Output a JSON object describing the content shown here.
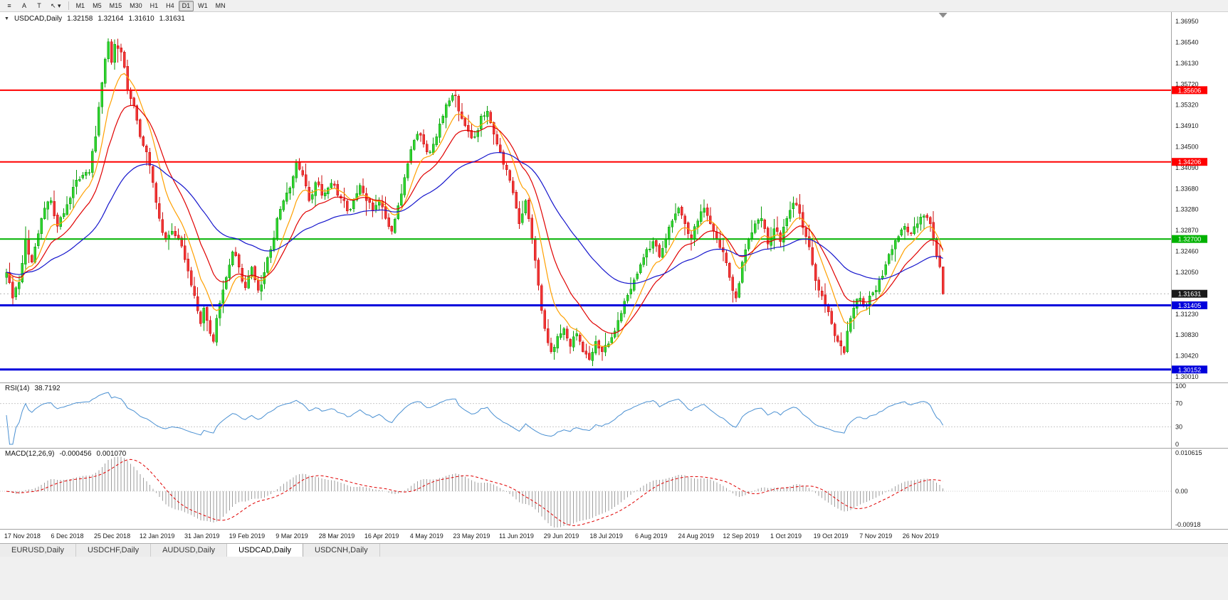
{
  "toolbar": {
    "tool_buttons": [
      {
        "name": "tile-windows-icon",
        "glyph": "≡"
      },
      {
        "name": "annotate-text-icon",
        "glyph": "A"
      },
      {
        "name": "text-label-icon",
        "glyph": "T"
      },
      {
        "name": "crosshair-cursor-icon",
        "glyph": "↖",
        "dropdown": "▾"
      }
    ],
    "timeframes": [
      "M1",
      "M5",
      "M15",
      "M30",
      "H1",
      "H4",
      "D1",
      "W1",
      "MN"
    ],
    "active_timeframe": "D1"
  },
  "chart_header": {
    "collapse_glyph": "▼",
    "symbol_period": "USDCAD,Daily",
    "open": "1.32158",
    "high": "1.32164",
    "low": "1.31610",
    "close": "1.31631"
  },
  "rsi_panel": {
    "label": "RSI(14)",
    "value": "38.7192"
  },
  "macd_panel": {
    "label": "MACD(12,26,9)",
    "main_value": "-0.000456",
    "signal_value": "0.001070"
  },
  "tabs": [
    {
      "label": "EURUSD,Daily",
      "active": false
    },
    {
      "label": "USDCHF,Daily",
      "active": false
    },
    {
      "label": "AUDUSD,Daily",
      "active": false
    },
    {
      "label": "USDCAD,Daily",
      "active": true
    },
    {
      "label": "USDCNH,Daily",
      "active": false
    }
  ],
  "chart_data": {
    "type": "candlestick",
    "symbol": "USDCAD",
    "period": "Daily",
    "bars": 295,
    "price_axis_ticks": [
      "1.36950",
      "1.36540",
      "1.36130",
      "1.35720",
      "1.35320",
      "1.34910",
      "1.34500",
      "1.34090",
      "1.33680",
      "1.33280",
      "1.32870",
      "1.32460",
      "1.32050",
      "1.31230",
      "1.30830",
      "1.30420",
      "1.30010"
    ],
    "date_labels": [
      "17 Nov 2018",
      "6 Dec 2018",
      "25 Dec 2018",
      "12 Jan 2019",
      "31 Jan 2019",
      "19 Feb 2019",
      "9 Mar 2019",
      "28 Mar 2019",
      "16 Apr 2019",
      "4 May 2019",
      "23 May 2019",
      "11 Jun 2019",
      "29 Jun 2019",
      "18 Jul 2019",
      "6 Aug 2019",
      "24 Aug 2019",
      "12 Sep 2019",
      "1 Oct 2019",
      "19 Oct 2019",
      "7 Nov 2019",
      "26 Nov 2019"
    ],
    "horizontal_lines": [
      {
        "price": 1.35606,
        "label": "1.35606",
        "color": "#ff0000",
        "width": 2
      },
      {
        "price": 1.34206,
        "label": "1.34206",
        "color": "#ff0000",
        "width": 2
      },
      {
        "price": 1.327,
        "label": "1.32700",
        "color": "#00b200",
        "width": 2
      },
      {
        "price": 1.31405,
        "label": "1.31405",
        "color": "#0000dc",
        "width": 3
      },
      {
        "price": 1.30152,
        "label": "1.30152",
        "color": "#0000dc",
        "width": 3
      }
    ],
    "current_price": {
      "value": 1.31631,
      "label": "1.31631",
      "badge_color": "#1a1a1a"
    },
    "last_candle": {
      "open": 1.32158,
      "high": 1.32164,
      "low": 1.3161,
      "close": 1.31631
    },
    "spike_bar": {
      "index": 141,
      "high": 1.356
    },
    "candle_colors": {
      "up_fill": "#2fd32f",
      "up_stroke": "#089b08",
      "down_fill": "#f03535",
      "down_stroke": "#cc0f0f"
    },
    "moving_averages": [
      {
        "period": 9,
        "color": "#ffa000"
      },
      {
        "period": 18,
        "color": "#e00000"
      },
      {
        "period": 50,
        "color": "#1414cc"
      }
    ],
    "rsi": {
      "period": 14,
      "color": "#4a90d2",
      "levels": [
        70,
        30
      ],
      "axis_labels": [
        "100",
        "70",
        "30",
        "0"
      ],
      "range": [
        0,
        100
      ]
    },
    "macd": {
      "fast": 12,
      "slow": 26,
      "signal": 9,
      "histogram_color": "#9e9e9e",
      "signal_color": "#e00000",
      "axis_labels": [
        "0.010615",
        "0.00",
        "-0.00918"
      ],
      "range": [
        0.0112,
        -0.01
      ]
    },
    "anchors": [
      [
        0,
        1.3205
      ],
      [
        2,
        1.3155
      ],
      [
        4,
        1.3185
      ],
      [
        6,
        1.327
      ],
      [
        8,
        1.3225
      ],
      [
        10,
        1.328
      ],
      [
        12,
        1.333
      ],
      [
        14,
        1.3345
      ],
      [
        16,
        1.3295
      ],
      [
        18,
        1.332
      ],
      [
        20,
        1.335
      ],
      [
        22,
        1.3385
      ],
      [
        24,
        1.3395
      ],
      [
        26,
        1.34
      ],
      [
        28,
        1.347
      ],
      [
        30,
        1.3575
      ],
      [
        32,
        1.3655
      ],
      [
        33,
        1.3615
      ],
      [
        34,
        1.365
      ],
      [
        36,
        1.3635
      ],
      [
        38,
        1.356
      ],
      [
        40,
        1.353
      ],
      [
        42,
        1.347
      ],
      [
        44,
        1.344
      ],
      [
        46,
        1.338
      ],
      [
        48,
        1.331
      ],
      [
        50,
        1.327
      ],
      [
        52,
        1.3285
      ],
      [
        54,
        1.327
      ],
      [
        56,
        1.323
      ],
      [
        58,
        1.318
      ],
      [
        60,
        1.313
      ],
      [
        61,
        1.3105
      ],
      [
        62,
        1.3135
      ],
      [
        64,
        1.3085
      ],
      [
        65,
        1.307
      ],
      [
        67,
        1.3145
      ],
      [
        69,
        1.3195
      ],
      [
        71,
        1.3245
      ],
      [
        73,
        1.3215
      ],
      [
        75,
        1.3175
      ],
      [
        77,
        1.3215
      ],
      [
        79,
        1.317
      ],
      [
        81,
        1.3205
      ],
      [
        83,
        1.325
      ],
      [
        85,
        1.331
      ],
      [
        87,
        1.3345
      ],
      [
        89,
        1.337
      ],
      [
        91,
        1.342
      ],
      [
        93,
        1.3395
      ],
      [
        95,
        1.3345
      ],
      [
        97,
        1.338
      ],
      [
        99,
        1.3355
      ],
      [
        101,
        1.337
      ],
      [
        103,
        1.3375
      ],
      [
        105,
        1.335
      ],
      [
        107,
        1.3325
      ],
      [
        109,
        1.3345
      ],
      [
        111,
        1.3375
      ],
      [
        113,
        1.3345
      ],
      [
        115,
        1.3325
      ],
      [
        117,
        1.3345
      ],
      [
        119,
        1.331
      ],
      [
        121,
        1.3285
      ],
      [
        123,
        1.3335
      ],
      [
        125,
        1.339
      ],
      [
        127,
        1.3445
      ],
      [
        129,
        1.3475
      ],
      [
        131,
        1.3455
      ],
      [
        133,
        1.344
      ],
      [
        135,
        1.347
      ],
      [
        137,
        1.351
      ],
      [
        139,
        1.354
      ],
      [
        141,
        1.355
      ],
      [
        143,
        1.3505
      ],
      [
        145,
        1.348
      ],
      [
        147,
        1.347
      ],
      [
        149,
        1.351
      ],
      [
        151,
        1.352
      ],
      [
        153,
        1.3475
      ],
      [
        155,
        1.344
      ],
      [
        157,
        1.3405
      ],
      [
        159,
        1.336
      ],
      [
        161,
        1.33
      ],
      [
        163,
        1.3345
      ],
      [
        165,
        1.327
      ],
      [
        167,
        1.318
      ],
      [
        169,
        1.3095
      ],
      [
        171,
        1.305
      ],
      [
        173,
        1.308
      ],
      [
        175,
        1.3095
      ],
      [
        177,
        1.306
      ],
      [
        179,
        1.3085
      ],
      [
        181,
        1.305
      ],
      [
        183,
        1.3035
      ],
      [
        185,
        1.307
      ],
      [
        187,
        1.305
      ],
      [
        189,
        1.3065
      ],
      [
        191,
        1.309
      ],
      [
        193,
        1.3125
      ],
      [
        195,
        1.316
      ],
      [
        197,
        1.319
      ],
      [
        199,
        1.322
      ],
      [
        201,
        1.325
      ],
      [
        203,
        1.3265
      ],
      [
        205,
        1.3235
      ],
      [
        207,
        1.327
      ],
      [
        209,
        1.3305
      ],
      [
        211,
        1.333
      ],
      [
        213,
        1.33
      ],
      [
        215,
        1.327
      ],
      [
        217,
        1.3305
      ],
      [
        219,
        1.333
      ],
      [
        221,
        1.33
      ],
      [
        223,
        1.327
      ],
      [
        225,
        1.3245
      ],
      [
        227,
        1.3195
      ],
      [
        229,
        1.3155
      ],
      [
        231,
        1.3225
      ],
      [
        233,
        1.327
      ],
      [
        235,
        1.33
      ],
      [
        237,
        1.331
      ],
      [
        239,
        1.326
      ],
      [
        241,
        1.329
      ],
      [
        243,
        1.3265
      ],
      [
        245,
        1.331
      ],
      [
        247,
        1.334
      ],
      [
        249,
        1.332
      ],
      [
        251,
        1.3275
      ],
      [
        253,
        1.322
      ],
      [
        255,
        1.317
      ],
      [
        257,
        1.314
      ],
      [
        259,
        1.3105
      ],
      [
        261,
        1.307
      ],
      [
        263,
        1.3048
      ],
      [
        264,
        1.309
      ],
      [
        266,
        1.3135
      ],
      [
        268,
        1.3155
      ],
      [
        270,
        1.314
      ],
      [
        272,
        1.3165
      ],
      [
        274,
        1.319
      ],
      [
        276,
        1.322
      ],
      [
        278,
        1.325
      ],
      [
        280,
        1.3275
      ],
      [
        282,
        1.3295
      ],
      [
        284,
        1.328
      ],
      [
        286,
        1.33
      ],
      [
        288,
        1.3315
      ],
      [
        290,
        1.33
      ],
      [
        291,
        1.327
      ],
      [
        292,
        1.3235
      ],
      [
        293,
        1.32158
      ],
      [
        294,
        1.31631
      ]
    ]
  }
}
